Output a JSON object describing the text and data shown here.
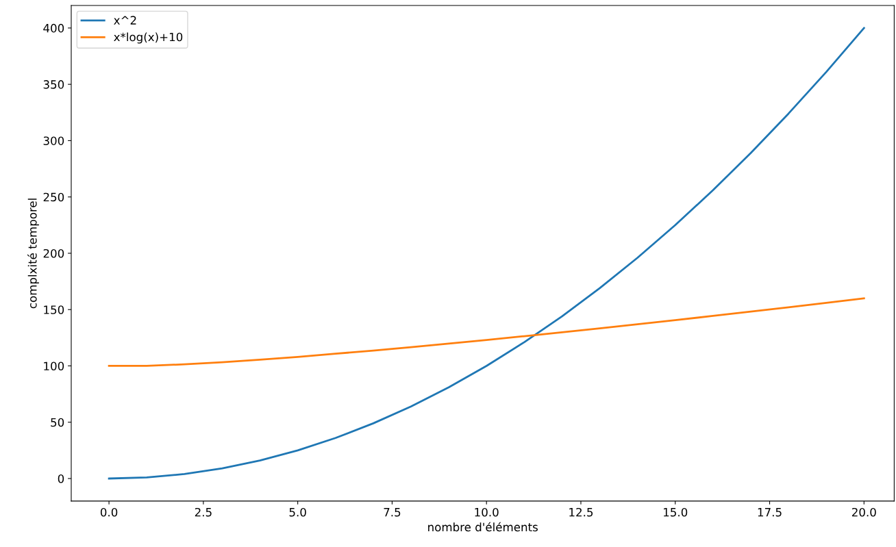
{
  "chart_data": {
    "type": "line",
    "xlabel": "nombre d'éléments",
    "ylabel": "complxité temporel",
    "x": [
      0,
      1,
      2,
      3,
      4,
      5,
      6,
      7,
      8,
      9,
      10,
      11,
      12,
      13,
      14,
      15,
      16,
      17,
      18,
      19,
      20
    ],
    "series": [
      {
        "name": "x^2",
        "color": "#1f77b4",
        "values": [
          0,
          1,
          4,
          9,
          16,
          25,
          36,
          49,
          64,
          81,
          100,
          121,
          144,
          169,
          196,
          225,
          256,
          289,
          324,
          361,
          400
        ]
      },
      {
        "name": "x*log(x)+10",
        "color": "#ff7f0e",
        "values": [
          100,
          100,
          101.4,
          103.3,
          105.5,
          108,
          110.8,
          113.6,
          116.6,
          119.8,
          123,
          126.4,
          129.8,
          133.3,
          137,
          140.6,
          144.4,
          148.2,
          152,
          155.9,
          160
        ]
      }
    ],
    "xlim": [
      -1,
      20.8
    ],
    "ylim": [
      -20,
      420
    ],
    "xticks": [
      {
        "value": 0,
        "label": "0.0"
      },
      {
        "value": 2.5,
        "label": "2.5"
      },
      {
        "value": 5,
        "label": "5.0"
      },
      {
        "value": 7.5,
        "label": "7.5"
      },
      {
        "value": 10,
        "label": "10.0"
      },
      {
        "value": 12.5,
        "label": "12.5"
      },
      {
        "value": 15,
        "label": "15.0"
      },
      {
        "value": 17.5,
        "label": "17.5"
      },
      {
        "value": 20,
        "label": "20.0"
      }
    ],
    "yticks": [
      0,
      50,
      100,
      150,
      200,
      250,
      300,
      350,
      400
    ],
    "legend": "top left",
    "grid": false,
    "marker": "none",
    "line_style": "solid"
  }
}
